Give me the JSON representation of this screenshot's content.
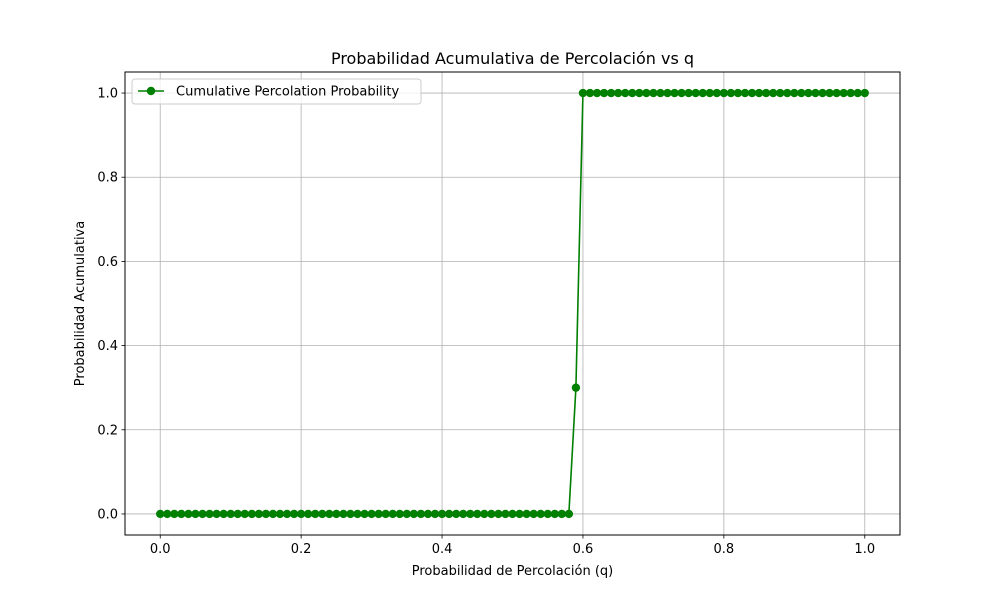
{
  "chart_data": {
    "type": "line",
    "title": "Probabilidad Acumulativa de Percolación vs q",
    "xlabel": "Probabilidad de Percolación (q)",
    "ylabel": "Probabilidad Acumulativa",
    "xlim": [
      -0.05,
      1.05
    ],
    "ylim": [
      -0.05,
      1.05
    ],
    "xticks": [
      0.0,
      0.2,
      0.4,
      0.6,
      0.8,
      1.0
    ],
    "xtick_labels": [
      "0.0",
      "0.2",
      "0.4",
      "0.6",
      "0.8",
      "1.0"
    ],
    "yticks": [
      0.0,
      0.2,
      0.4,
      0.6,
      0.8,
      1.0
    ],
    "ytick_labels": [
      "0.0",
      "0.2",
      "0.4",
      "0.6",
      "0.8",
      "1.0"
    ],
    "grid": true,
    "legend_position": "upper-left",
    "series": [
      {
        "name": "Cumulative Percolation Probability",
        "color": "#008000",
        "marker": "circle",
        "x": [
          0.0,
          0.01,
          0.02,
          0.03,
          0.04,
          0.05,
          0.06,
          0.07,
          0.08,
          0.09,
          0.1,
          0.11,
          0.12,
          0.13,
          0.14,
          0.15,
          0.16,
          0.17,
          0.18,
          0.19,
          0.2,
          0.21,
          0.22,
          0.23,
          0.24,
          0.25,
          0.26,
          0.27,
          0.28,
          0.29,
          0.3,
          0.31,
          0.32,
          0.33,
          0.34,
          0.35,
          0.36,
          0.37,
          0.38,
          0.39,
          0.4,
          0.41,
          0.42,
          0.43,
          0.44,
          0.45,
          0.46,
          0.47,
          0.48,
          0.49,
          0.5,
          0.51,
          0.52,
          0.53,
          0.54,
          0.55,
          0.56,
          0.57,
          0.58,
          0.59,
          0.6,
          0.61,
          0.62,
          0.63,
          0.64,
          0.65,
          0.66,
          0.67,
          0.68,
          0.69,
          0.7,
          0.71,
          0.72,
          0.73,
          0.74,
          0.75,
          0.76,
          0.77,
          0.78,
          0.79,
          0.8,
          0.81,
          0.82,
          0.83,
          0.84,
          0.85,
          0.86,
          0.87,
          0.88,
          0.89,
          0.9,
          0.91,
          0.92,
          0.93,
          0.94,
          0.95,
          0.96,
          0.97,
          0.98,
          0.99,
          1.0
        ],
        "y": [
          0,
          0,
          0,
          0,
          0,
          0,
          0,
          0,
          0,
          0,
          0,
          0,
          0,
          0,
          0,
          0,
          0,
          0,
          0,
          0,
          0,
          0,
          0,
          0,
          0,
          0,
          0,
          0,
          0,
          0,
          0,
          0,
          0,
          0,
          0,
          0,
          0,
          0,
          0,
          0,
          0,
          0,
          0,
          0,
          0,
          0,
          0,
          0,
          0,
          0,
          0,
          0,
          0,
          0,
          0,
          0,
          0,
          0,
          0,
          0.3,
          1,
          1,
          1,
          1,
          1,
          1,
          1,
          1,
          1,
          1,
          1,
          1,
          1,
          1,
          1,
          1,
          1,
          1,
          1,
          1,
          1,
          1,
          1,
          1,
          1,
          1,
          1,
          1,
          1,
          1,
          1,
          1,
          1,
          1,
          1,
          1,
          1,
          1,
          1,
          1,
          1
        ]
      }
    ]
  }
}
